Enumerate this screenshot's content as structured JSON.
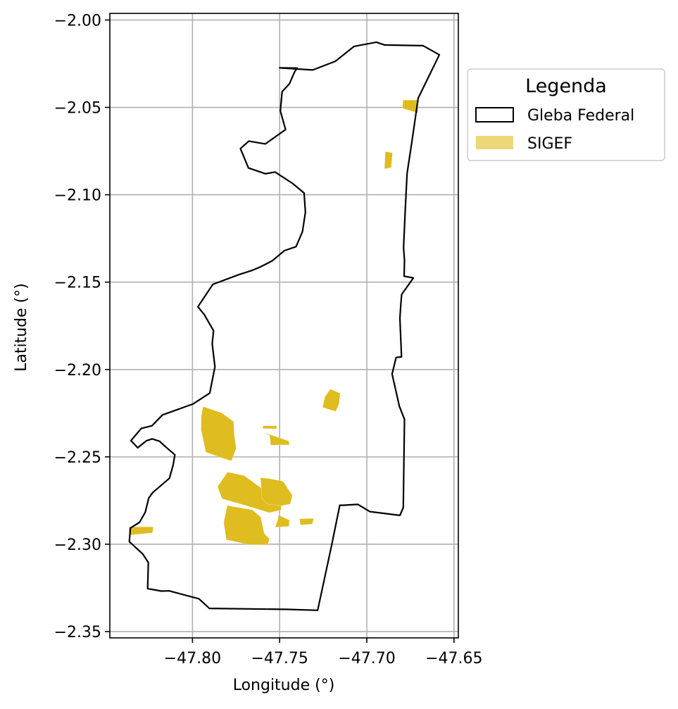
{
  "map": {
    "x_axis": {
      "label": "Longitude (°)",
      "ticks": [
        {
          "value": -47.8,
          "label": "−47.80"
        },
        {
          "value": -47.75,
          "label": "−47.75"
        },
        {
          "value": -47.7,
          "label": "−47.70"
        },
        {
          "value": -47.65,
          "label": "−47.65"
        }
      ],
      "range": [
        -47.8474,
        -47.6475
      ]
    },
    "y_axis": {
      "label": "Latitude (°)",
      "ticks": [
        {
          "value": -2.0,
          "label": "−2.00"
        },
        {
          "value": -2.05,
          "label": "−2.05"
        },
        {
          "value": -2.1,
          "label": "−2.10"
        },
        {
          "value": -2.15,
          "label": "−2.15"
        },
        {
          "value": -2.2,
          "label": "−2.20"
        },
        {
          "value": -2.25,
          "label": "−2.25"
        },
        {
          "value": -2.3,
          "label": "−2.30"
        },
        {
          "value": -2.35,
          "label": "−2.35"
        }
      ],
      "range": [
        -2.3536,
        -1.9962
      ]
    },
    "grid": true,
    "legend": {
      "title": "Legenda",
      "placement": "outside-right-top",
      "items": [
        {
          "label": "Gleba Federal",
          "style": "outline",
          "stroke": "#000000",
          "fill": "none"
        },
        {
          "label": "SIGEF",
          "style": "filled",
          "fill": "#dfbc1f",
          "opacity": 0.6
        }
      ]
    },
    "colors": {
      "gleba_outline": "#000000",
      "sigef_fill": "#dfbc1f",
      "grid": "#b0b0b0"
    },
    "gleba_federal": [
      [
        -47.75,
        -2.0274
      ],
      [
        -47.731,
        -2.0286
      ],
      [
        -47.718,
        -2.0236
      ],
      [
        -47.7073,
        -2.0151
      ],
      [
        -47.6945,
        -2.0127
      ],
      [
        -47.6897,
        -2.0143
      ],
      [
        -47.6677,
        -2.0147
      ],
      [
        -47.6584,
        -2.0199
      ],
      [
        -47.6705,
        -2.0447
      ],
      [
        -47.6744,
        -2.0713
      ],
      [
        -47.6769,
        -2.0878
      ],
      [
        -47.678,
        -2.1095
      ],
      [
        -47.6789,
        -2.1303
      ],
      [
        -47.6784,
        -2.1375
      ],
      [
        -47.6786,
        -2.1466
      ],
      [
        -47.6733,
        -2.1476
      ],
      [
        -47.68,
        -2.1571
      ],
      [
        -47.6805,
        -2.1628
      ],
      [
        -47.681,
        -2.1707
      ],
      [
        -47.6801,
        -2.1928
      ],
      [
        -47.6832,
        -2.1931
      ],
      [
        -47.6855,
        -2.2026
      ],
      [
        -47.6813,
        -2.2211
      ],
      [
        -47.6784,
        -2.2285
      ],
      [
        -47.6791,
        -2.2791
      ],
      [
        -47.681,
        -2.2835
      ],
      [
        -47.6983,
        -2.2813
      ],
      [
        -47.7051,
        -2.2772
      ],
      [
        -47.7137,
        -2.2777
      ],
      [
        -47.7155,
        -2.2777
      ],
      [
        -47.7201,
        -2.3003
      ],
      [
        -47.7282,
        -2.3378
      ],
      [
        -47.7454,
        -2.3373
      ],
      [
        -47.7903,
        -2.3367
      ],
      [
        -47.7963,
        -2.3312
      ],
      [
        -47.8134,
        -2.3267
      ],
      [
        -47.8179,
        -2.3268
      ],
      [
        -47.8257,
        -2.3254
      ],
      [
        -47.8253,
        -2.3105
      ],
      [
        -47.8284,
        -2.3057
      ],
      [
        -47.8362,
        -2.2985
      ],
      [
        -47.8356,
        -2.2907
      ],
      [
        -47.8304,
        -2.2875
      ],
      [
        -47.8271,
        -2.2817
      ],
      [
        -47.8251,
        -2.2736
      ],
      [
        -47.8229,
        -2.2705
      ],
      [
        -47.8132,
        -2.2622
      ],
      [
        -47.8111,
        -2.2547
      ],
      [
        -47.8101,
        -2.2488
      ],
      [
        -47.8156,
        -2.2441
      ],
      [
        -47.8188,
        -2.2411
      ],
      [
        -47.8231,
        -2.2397
      ],
      [
        -47.8265,
        -2.2408
      ],
      [
        -47.8314,
        -2.2448
      ],
      [
        -47.8353,
        -2.2407
      ],
      [
        -47.8293,
        -2.2337
      ],
      [
        -47.8232,
        -2.2322
      ],
      [
        -47.8172,
        -2.226
      ],
      [
        -47.7998,
        -2.2198
      ],
      [
        -47.7901,
        -2.2135
      ],
      [
        -47.7871,
        -2.1985
      ],
      [
        -47.7887,
        -2.1853
      ],
      [
        -47.7879,
        -2.1778
      ],
      [
        -47.7932,
        -2.1686
      ],
      [
        -47.7969,
        -2.1641
      ],
      [
        -47.7883,
        -2.1513
      ],
      [
        -47.7731,
        -2.1456
      ],
      [
        -47.7661,
        -2.1434
      ],
      [
        -47.7613,
        -2.1414
      ],
      [
        -47.7542,
        -2.1378
      ],
      [
        -47.7473,
        -2.132
      ],
      [
        -47.7406,
        -2.1297
      ],
      [
        -47.7369,
        -2.1211
      ],
      [
        -47.7352,
        -2.11
      ],
      [
        -47.736,
        -2.099
      ],
      [
        -47.7426,
        -2.0935
      ],
      [
        -47.7526,
        -2.087
      ],
      [
        -47.7581,
        -2.088
      ],
      [
        -47.7679,
        -2.0847
      ],
      [
        -47.7725,
        -2.0736
      ],
      [
        -47.7677,
        -2.0693
      ],
      [
        -47.7582,
        -2.0709
      ],
      [
        -47.7466,
        -2.0627
      ],
      [
        -47.7496,
        -2.052
      ],
      [
        -47.7486,
        -2.041
      ],
      [
        -47.7444,
        -2.0365
      ],
      [
        -47.7416,
        -2.03
      ],
      [
        -47.74,
        -2.0275
      ],
      [
        -47.75,
        -2.0274
      ]
    ],
    "sigef": [
      [
        [
          -47.794,
          -2.2212
        ],
        [
          -47.7833,
          -2.2248
        ],
        [
          -47.7764,
          -2.2298
        ],
        [
          -47.776,
          -2.2375
        ],
        [
          -47.7749,
          -2.2451
        ],
        [
          -47.7776,
          -2.2523
        ],
        [
          -47.7828,
          -2.2507
        ],
        [
          -47.7924,
          -2.2473
        ],
        [
          -47.7951,
          -2.2343
        ],
        [
          -47.795,
          -2.2271
        ]
      ],
      [
        [
          -47.7799,
          -2.2587
        ],
        [
          -47.7704,
          -2.2607
        ],
        [
          -47.763,
          -2.2661
        ],
        [
          -47.7556,
          -2.2715
        ],
        [
          -47.7496,
          -2.275
        ],
        [
          -47.749,
          -2.2804
        ],
        [
          -47.7559,
          -2.282
        ],
        [
          -47.7688,
          -2.278
        ],
        [
          -47.776,
          -2.276
        ],
        [
          -47.783,
          -2.274
        ],
        [
          -47.7856,
          -2.267
        ]
      ],
      [
        [
          -47.7801,
          -2.2778
        ],
        [
          -47.7656,
          -2.2803
        ],
        [
          -47.7608,
          -2.2845
        ],
        [
          -47.7588,
          -2.2939
        ],
        [
          -47.7558,
          -2.2969
        ],
        [
          -47.7569,
          -2.3004
        ],
        [
          -47.7677,
          -2.3002
        ],
        [
          -47.7806,
          -2.2974
        ],
        [
          -47.7821,
          -2.2875
        ]
      ],
      [
        [
          -47.7592,
          -2.2365
        ],
        [
          -47.7558,
          -2.2375
        ],
        [
          -47.7551,
          -2.2434
        ],
        [
          -47.7522,
          -2.2432
        ],
        [
          -47.7443,
          -2.2431
        ],
        [
          -47.7448,
          -2.2409
        ],
        [
          -47.757,
          -2.2367
        ]
      ],
      [
        [
          -47.7596,
          -2.2322
        ],
        [
          -47.7517,
          -2.2322
        ],
        [
          -47.7517,
          -2.234
        ],
        [
          -47.7596,
          -2.2338
        ]
      ],
      [
        [
          -47.761,
          -2.2619
        ],
        [
          -47.7556,
          -2.2625
        ],
        [
          -47.748,
          -2.264
        ],
        [
          -47.7427,
          -2.272
        ],
        [
          -47.7439,
          -2.277
        ],
        [
          -47.7491,
          -2.2781
        ],
        [
          -47.7571,
          -2.277
        ],
        [
          -47.76,
          -2.274
        ]
      ],
      [
        [
          -47.7508,
          -2.2833
        ],
        [
          -47.7443,
          -2.2862
        ],
        [
          -47.7447,
          -2.2898
        ],
        [
          -47.7525,
          -2.2903
        ],
        [
          -47.7509,
          -2.2853
        ]
      ],
      [
        [
          -47.7386,
          -2.2854
        ],
        [
          -47.7304,
          -2.2852
        ],
        [
          -47.7313,
          -2.2885
        ],
        [
          -47.738,
          -2.289
        ]
      ],
      [
        [
          -47.7209,
          -2.2112
        ],
        [
          -47.7153,
          -2.2136
        ],
        [
          -47.7159,
          -2.2197
        ],
        [
          -47.7178,
          -2.224
        ],
        [
          -47.7254,
          -2.2217
        ],
        [
          -47.724,
          -2.2155
        ]
      ],
      [
        [
          -47.8225,
          -2.29
        ],
        [
          -47.8364,
          -2.29
        ],
        [
          -47.8362,
          -2.2948
        ],
        [
          -47.8229,
          -2.2935
        ]
      ],
      [
        [
          -47.6792,
          -2.0458
        ],
        [
          -47.6709,
          -2.0458
        ],
        [
          -47.6707,
          -2.0532
        ],
        [
          -47.6796,
          -2.0505
        ]
      ],
      [
        [
          -47.6894,
          -2.0753
        ],
        [
          -47.6852,
          -2.076
        ],
        [
          -47.686,
          -2.0844
        ],
        [
          -47.6899,
          -2.0853
        ]
      ]
    ]
  }
}
